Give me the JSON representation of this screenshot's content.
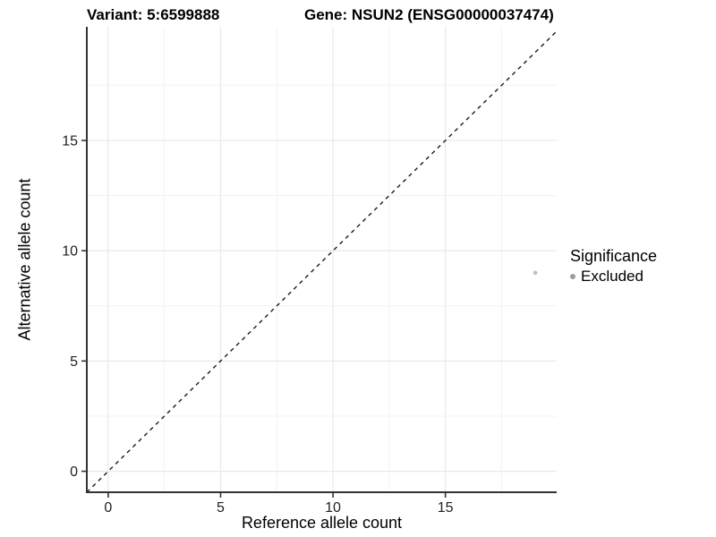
{
  "titles": {
    "variant": "Variant: 5:6599888",
    "gene": "Gene: NSUN2 (ENSG00000037474)"
  },
  "legend": {
    "title": "Significance",
    "items": [
      {
        "label": "Excluded",
        "color": "#9c9c9c"
      }
    ]
  },
  "chart_data": {
    "type": "scatter",
    "title": "Variant: 5:6599888",
    "subtitle": "Gene: NSUN2 (ENSG00000037474)",
    "xlabel": "Reference allele count",
    "ylabel": "Alternative allele count",
    "xlim": [
      -0.95,
      19.95
    ],
    "ylim": [
      -0.95,
      20.15
    ],
    "x_major_ticks": [
      0,
      5,
      10,
      15
    ],
    "x_minor_ticks": [
      2.5,
      7.5,
      12.5,
      17.5
    ],
    "y_major_ticks": [
      0,
      5,
      10,
      15
    ],
    "y_minor_ticks": [
      2.5,
      7.5,
      12.5,
      17.5
    ],
    "grid": true,
    "legend_position": "right",
    "series": [
      {
        "name": "Excluded",
        "points": [
          {
            "x": 19,
            "y": 9
          }
        ],
        "color": "#bfbfbf"
      }
    ],
    "reference_line": {
      "kind": "identity y=x",
      "style": "dashed",
      "color": "#1a1a1a"
    }
  },
  "colors": {
    "background": "#ffffff",
    "axis_line": "#333333",
    "tick_label": "#1f1f1f",
    "grid_major": "#e9e9e9",
    "grid_minor": "#f3f3f3",
    "point": "#bfbfbf",
    "legend_point": "#9c9c9c",
    "dashed_line": "#1a1a1a"
  }
}
